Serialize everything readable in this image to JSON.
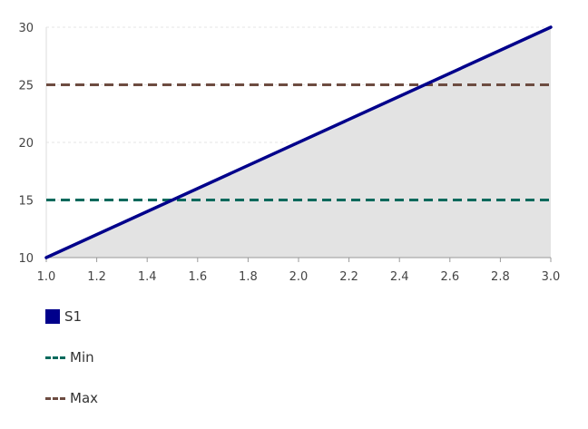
{
  "chart_data": {
    "type": "line",
    "x": [
      1.0,
      3.0
    ],
    "xlim": [
      1.0,
      3.0
    ],
    "ylim": [
      10,
      30
    ],
    "xticks": [
      "1.0",
      "1.2",
      "1.4",
      "1.6",
      "1.8",
      "2.0",
      "2.2",
      "2.4",
      "2.6",
      "2.8",
      "3.0"
    ],
    "yticks": [
      "10",
      "15",
      "20",
      "25",
      "30"
    ],
    "grid": true,
    "legend_position": "bottom-left",
    "series": [
      {
        "name": "S1",
        "x": [
          1.0,
          3.0
        ],
        "values": [
          10,
          30
        ],
        "color": "#00008b",
        "style": "solid",
        "fill": "#e3e3e3"
      },
      {
        "name": "Min",
        "x": [
          1.0,
          3.0
        ],
        "values": [
          15,
          15
        ],
        "color": "#00695c",
        "style": "dashed"
      },
      {
        "name": "Max",
        "x": [
          1.0,
          3.0
        ],
        "values": [
          25,
          25
        ],
        "color": "#6d4c41",
        "style": "dashed"
      }
    ]
  }
}
